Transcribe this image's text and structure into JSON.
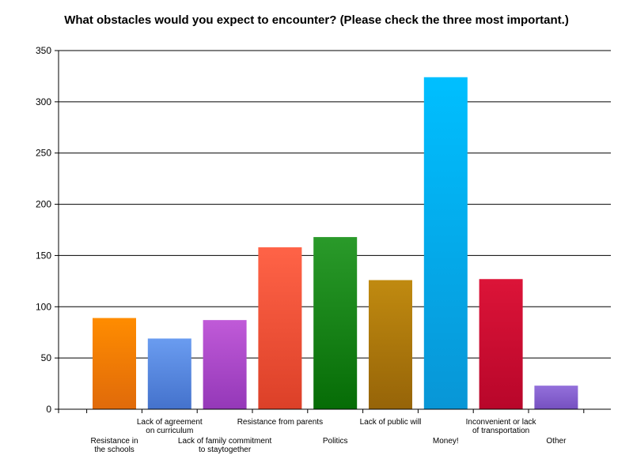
{
  "chart_data": {
    "type": "bar",
    "title": "What obstacles would you expect to encounter? (Please check the three most important.)",
    "xlabel": "",
    "ylabel": "",
    "ylim": [
      0,
      350
    ],
    "yticks": [
      0,
      50,
      100,
      150,
      200,
      250,
      300,
      350
    ],
    "grid": true,
    "legend": "none",
    "categories": [
      [
        "Resistance in",
        "the schools"
      ],
      [
        "Lack of agreement",
        "on curriculum"
      ],
      [
        "Lack of family commitment",
        "to staytogether"
      ],
      [
        "Resistance from parents"
      ],
      [
        "Politics"
      ],
      [
        "Lack of public will"
      ],
      [
        "Money!"
      ],
      [
        "Inconvenient or lack",
        "of transportation"
      ],
      [
        "Other"
      ]
    ],
    "values": [
      89,
      69,
      87,
      158,
      168,
      126,
      324,
      127,
      23
    ],
    "colors": [
      [
        "#ff8c00",
        "#e06a0a"
      ],
      [
        "#6a9cf0",
        "#4472cc"
      ],
      [
        "#c05ad8",
        "#9438b8"
      ],
      [
        "#ff6347",
        "#dc4028"
      ],
      [
        "#2a9a2a",
        "#066c06"
      ],
      [
        "#c08a10",
        "#966408"
      ],
      [
        "#00bfff",
        "#0896d6"
      ],
      [
        "#dc1438",
        "#b8062a"
      ],
      [
        "#9370db",
        "#7650c0"
      ]
    ]
  }
}
